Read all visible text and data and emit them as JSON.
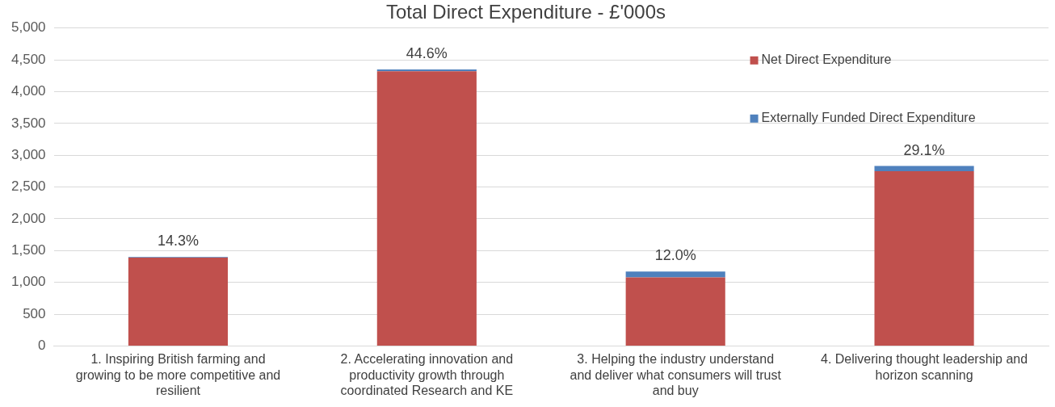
{
  "chart_data": {
    "type": "bar",
    "title": "Total Direct Expenditure - £'000s",
    "categories": [
      "1. Inspiring British farming and growing to be more competitive and resilient",
      "2. Accelerating innovation and productivity growth through coordinated Research and KE",
      "3. Helping the industry understand and deliver what consumers will trust and buy",
      "4. Delivering thought leadership and horizon scanning"
    ],
    "series": [
      {
        "name": "Net Direct Expenditure",
        "color": "#c0504d",
        "values": [
          1390,
          4320,
          1080,
          2750
        ]
      },
      {
        "name": "Externally Funded Direct Expenditure",
        "color": "#4f81bd",
        "values": [
          10,
          30,
          90,
          80
        ]
      }
    ],
    "stacked": true,
    "ylim": [
      0,
      5000
    ],
    "yticks": [
      {
        "value": 0,
        "label": "0"
      },
      {
        "value": 500,
        "label": "500"
      },
      {
        "value": 1000,
        "label": "1,000"
      },
      {
        "value": 1500,
        "label": "1,500"
      },
      {
        "value": 2000,
        "label": "2,000"
      },
      {
        "value": 2500,
        "label": "2,500"
      },
      {
        "value": 3000,
        "label": "3,000"
      },
      {
        "value": 3500,
        "label": "3,500"
      },
      {
        "value": 4000,
        "label": "4,000"
      },
      {
        "value": 4500,
        "label": "4,500"
      },
      {
        "value": 5000,
        "label": "5,000"
      }
    ],
    "annotations": [
      {
        "text": "14.3%",
        "x": "1. Inspiring British farming and growing to be more competitive and resilient",
        "y": 1400
      },
      {
        "text": "44.6%",
        "x": "2. Accelerating innovation and productivity growth through coordinated Research and KE",
        "y": 4350
      },
      {
        "text": "12.0%",
        "x": "3. Helping the industry understand and deliver what consumers will trust and buy",
        "y": 1170
      },
      {
        "text": "29.1%",
        "x": "4. Delivering thought leadership and horizon scanning",
        "y": 2830
      }
    ],
    "grid": "y",
    "legend": "top right"
  }
}
